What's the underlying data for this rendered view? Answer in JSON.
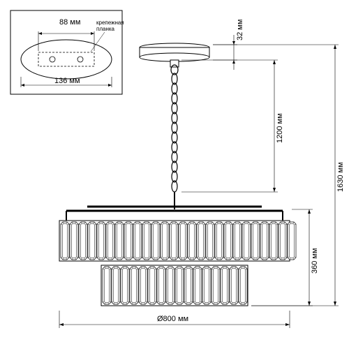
{
  "inset": {
    "width_label": "88 мм",
    "bracket_label": "крепежная\nпланка",
    "bracket_label_line1": "крепежная",
    "bracket_label_line2": "планка",
    "base_label": "136 мм"
  },
  "dimensions": {
    "canopy_height": "32 мм",
    "chain_length": "1200 мм",
    "total_height": "1630 мм",
    "body_height": "360 мм",
    "diameter": "Ø800 мм"
  },
  "colors": {
    "stroke": "#000000",
    "fill_light": "#ffffff",
    "crystal_fill": "#f5f5f5",
    "bg": "#ffffff"
  },
  "style": {
    "stroke_width": 1,
    "thin_stroke": 0.7,
    "font_size": 11,
    "small_font": 9
  }
}
